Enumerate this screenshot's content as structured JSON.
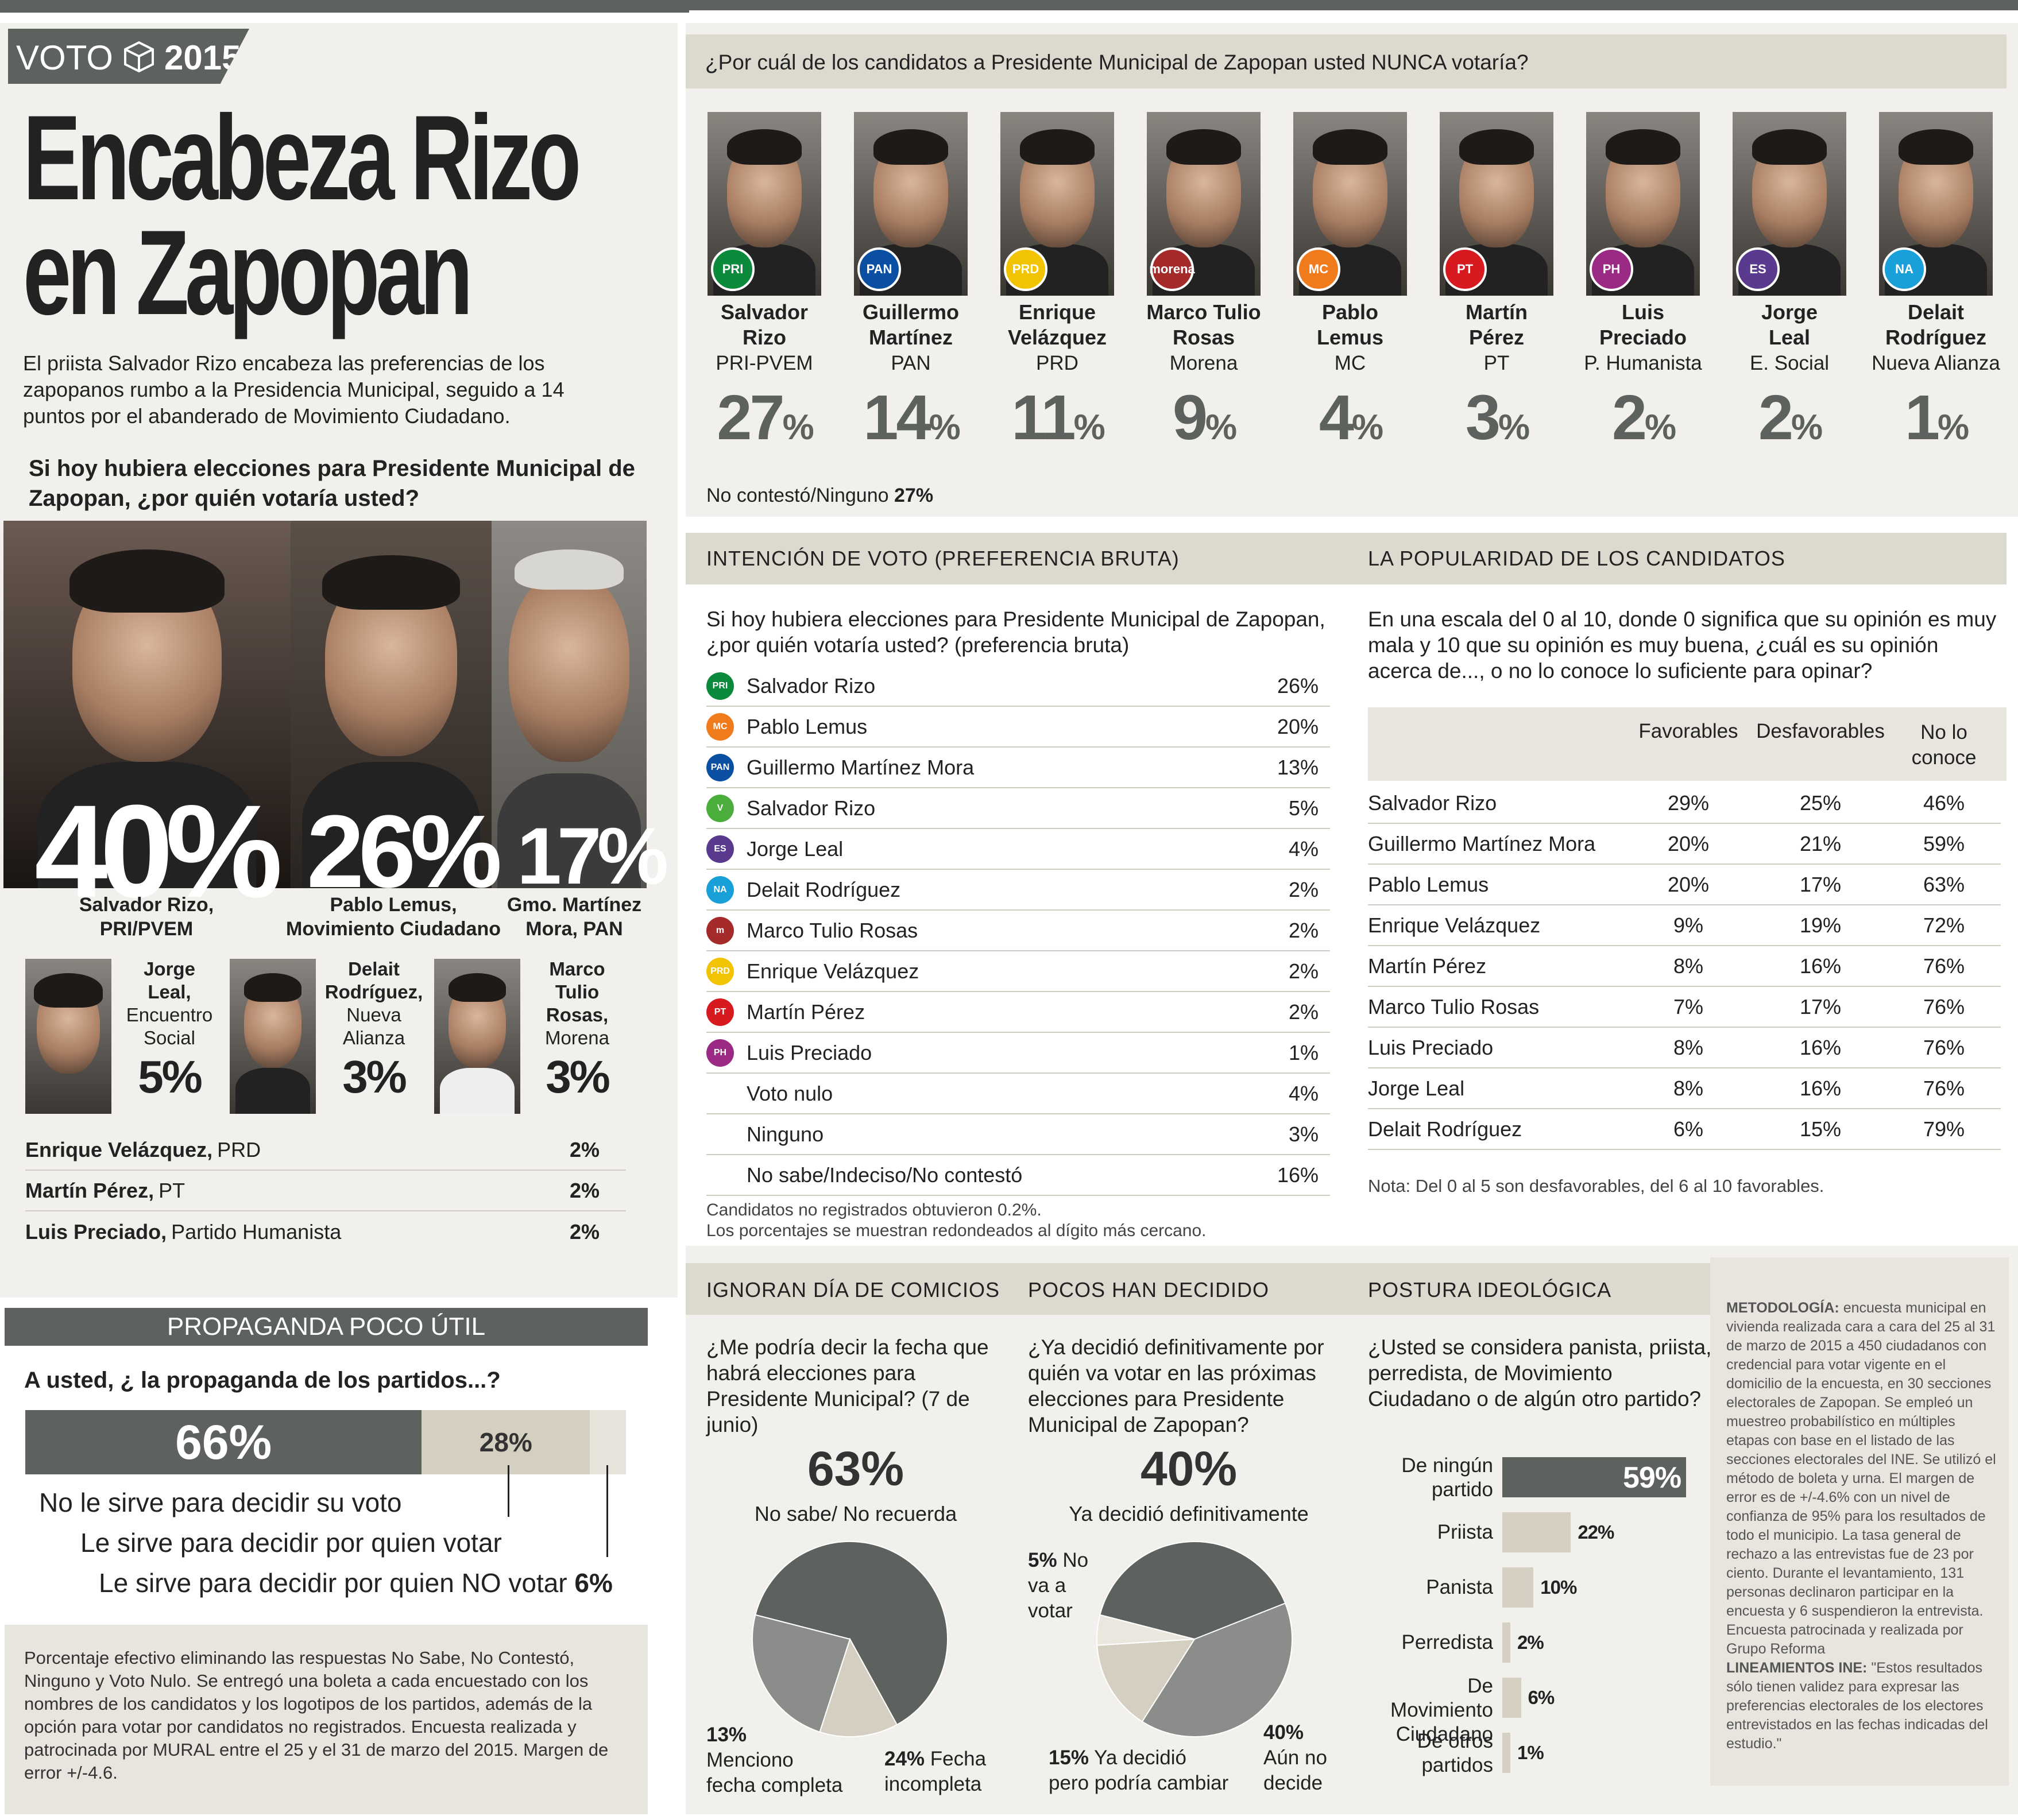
{
  "header": {
    "brand": "VOTO",
    "year": "2015",
    "title_line1": "Encabeza Rizo",
    "title_line2": "en Zapopan",
    "intro": "El priista Salvador Rizo encabeza las preferencias de los zapopanos rumbo a la Presidencia Municipal, seguido a 14 puntos por el abanderado de Movimiento Ciudadano."
  },
  "left_poll": {
    "question": "Si hoy hubiera elecciones para Presidente Municipal de Zapopan, ¿por quién votaría usted?",
    "top": [
      {
        "pct": "40%",
        "name": "Salvador Rizo,",
        "party": "PRI/PVEM"
      },
      {
        "pct": "26%",
        "name": "Pablo Lemus,",
        "party": "Movimiento Ciudadano"
      },
      {
        "pct": "17%",
        "name": "Gmo. Martínez",
        "party": "Mora, PAN"
      }
    ],
    "mid": [
      {
        "l1": "Jorge",
        "l2": "Leal,",
        "l3": "Encuentro",
        "l4": "Social",
        "pct": "5%"
      },
      {
        "l1": "Delait",
        "l2": "Rodríguez,",
        "l3": "Nueva",
        "l4": "Alianza",
        "pct": "3%"
      },
      {
        "l1": "Marco",
        "l2": "Tulio",
        "l3": "Rosas,",
        "l4": "Morena",
        "pct": "3%"
      }
    ],
    "rows": [
      {
        "name": "Enrique Velázquez,",
        "party": "PRD",
        "pct": "2%"
      },
      {
        "name": "Martín Pérez,",
        "party": "PT",
        "pct": "2%"
      },
      {
        "name": "Luis Preciado,",
        "party": "Partido Humanista",
        "pct": "2%"
      }
    ]
  },
  "propaganda": {
    "title": "PROPAGANDA POCO ÚTIL",
    "question": "A usted, ¿ la propaganda de los partidos...?",
    "bar": [
      {
        "pct": "66%",
        "value": 66,
        "color": "#5d625e"
      },
      {
        "pct": "28%",
        "value": 28,
        "color": "#d4cfc0"
      },
      {
        "pct": "",
        "value": 6,
        "color": "#e6e3da"
      }
    ],
    "l1": "No le sirve para decidir su voto",
    "l2": "Le sirve para decidir por quien votar",
    "l3": "Le sirve para decidir por quien NO votar",
    "l3pct": "6%",
    "note": "Porcentaje efectivo eliminando las respuestas No Sabe, No Contestó, Ninguno y Voto Nulo. Se entregó una boleta a cada encuestado con los nombres de los candidatos y los logotipos de los partidos, además de la opción para votar por candidatos no registrados. Encuesta realizada y patrocinada por MURAL entre el 25 y el 31 de marzo del 2015. Margen de error +/-4.6."
  },
  "nunca": {
    "question": "¿Por cuál de los candidatos a Presidente Municipal de Zapopan usted NUNCA votaría?",
    "candidates": [
      {
        "n1": "Salvador",
        "n2": "Rizo",
        "party": "PRI-PVEM",
        "pct": "27",
        "logo": "PRI",
        "color": "#0a8a3a"
      },
      {
        "n1": "Guillermo",
        "n2": "Martínez",
        "party": "PAN",
        "pct": "14",
        "logo": "PAN",
        "color": "#0b4fa3"
      },
      {
        "n1": "Enrique",
        "n2": "Velázquez",
        "party": "PRD",
        "pct": "11",
        "logo": "PRD",
        "color": "#f2c300"
      },
      {
        "n1": "Marco Tulio",
        "n2": "Rosas",
        "party": "Morena",
        "pct": "9",
        "logo": "morena",
        "color": "#a52a2a"
      },
      {
        "n1": "Pablo",
        "n2": "Lemus",
        "party": "MC",
        "pct": "4",
        "logo": "MC",
        "color": "#f07b1d"
      },
      {
        "n1": "Martín",
        "n2": "Pérez",
        "party": "PT",
        "pct": "3",
        "logo": "PT",
        "color": "#d71920"
      },
      {
        "n1": "Luis",
        "n2": "Preciado",
        "party": "P. Humanista",
        "pct": "2",
        "logo": "PH",
        "color": "#9a2a83"
      },
      {
        "n1": "Jorge",
        "n2": "Leal",
        "party": "E. Social",
        "pct": "2",
        "logo": "ES",
        "color": "#5a3a8e"
      },
      {
        "n1": "Delait",
        "n2": "Rodríguez",
        "party": "Nueva Alianza",
        "pct": "1",
        "logo": "NA",
        "color": "#1aa0d8"
      }
    ],
    "pct_sign": "%",
    "no_contesto": "No contestó/Ninguno",
    "no_contesto_pct": "27%"
  },
  "intencion": {
    "title": "INTENCIÓN DE VOTO (PREFERENCIA BRUTA)",
    "question": "Si hoy hubiera elecciones para Presidente Municipal de Zapopan, ¿por quién votaría usted? (preferencia bruta)",
    "rows": [
      {
        "name": "Salvador Rizo",
        "pct": "26%",
        "logo": "PRI",
        "color": "#0a8a3a"
      },
      {
        "name": "Pablo Lemus",
        "pct": "20%",
        "logo": "MC",
        "color": "#f07b1d"
      },
      {
        "name": "Guillermo Martínez Mora",
        "pct": "13%",
        "logo": "PAN",
        "color": "#0b4fa3"
      },
      {
        "name": "Salvador Rizo",
        "pct": "5%",
        "logo": "V",
        "color": "#4bae3c"
      },
      {
        "name": "Jorge Leal",
        "pct": "4%",
        "logo": "ES",
        "color": "#5a3a8e"
      },
      {
        "name": "Delait Rodríguez",
        "pct": "2%",
        "logo": "NA",
        "color": "#1aa0d8"
      },
      {
        "name": "Marco Tulio Rosas",
        "pct": "2%",
        "logo": "m",
        "color": "#a52a2a"
      },
      {
        "name": "Enrique Velázquez",
        "pct": "2%",
        "logo": "PRD",
        "color": "#f2c300"
      },
      {
        "name": "Martín Pérez",
        "pct": "2%",
        "logo": "PT",
        "color": "#d71920"
      },
      {
        "name": "Luis Preciado",
        "pct": "1%",
        "logo": "PH",
        "color": "#9a2a83"
      },
      {
        "name": "Voto nulo",
        "pct": "4%",
        "logo": "",
        "color": ""
      },
      {
        "name": "Ninguno",
        "pct": "3%",
        "logo": "",
        "color": ""
      },
      {
        "name": "No sabe/Indeciso/No contestó",
        "pct": "16%",
        "logo": "",
        "color": ""
      }
    ],
    "note1": "Candidatos no registrados obtuvieron 0.2%.",
    "note2": "Los porcentajes se muestran redondeados al dígito más cercano."
  },
  "popularidad": {
    "title": "LA POPULARIDAD DE LOS CANDIDATOS",
    "question": "En una escala del 0 al 10, donde 0 significa que su opinión es muy mala y 10 que su opinión es muy buena, ¿cuál es su opinión acerca de..., o no lo conoce lo suficiente para opinar?",
    "headers": [
      "Favorables",
      "Desfavorables",
      "No lo",
      "conoce"
    ],
    "rows": [
      {
        "name": "Salvador Rizo",
        "f": "29%",
        "d": "25%",
        "n": "46%"
      },
      {
        "name": "Guillermo Martínez Mora",
        "f": "20%",
        "d": "21%",
        "n": "59%"
      },
      {
        "name": "Pablo Lemus",
        "f": "20%",
        "d": "17%",
        "n": "63%"
      },
      {
        "name": "Enrique Velázquez",
        "f": "9%",
        "d": "19%",
        "n": "72%"
      },
      {
        "name": "Martín Pérez",
        "f": "8%",
        "d": "16%",
        "n": "76%"
      },
      {
        "name": "Marco Tulio Rosas",
        "f": "7%",
        "d": "17%",
        "n": "76%"
      },
      {
        "name": "Luis Preciado",
        "f": "8%",
        "d": "16%",
        "n": "76%"
      },
      {
        "name": "Jorge Leal",
        "f": "8%",
        "d": "16%",
        "n": "76%"
      },
      {
        "name": "Delait Rodríguez",
        "f": "6%",
        "d": "15%",
        "n": "79%"
      }
    ],
    "note": "Nota: Del 0 al 5 son desfavorables, del 6 al 10 favorables."
  },
  "comicios": {
    "title": "IGNORAN DÍA DE COMICIOS",
    "question": "¿Me podría decir la fecha que habrá elecciones para Presidente Municipal? (7 de junio)",
    "big": "63%",
    "big_label": "No sabe/ No recuerda",
    "slices": [
      {
        "value": 63,
        "color": "#5d625e"
      },
      {
        "value": 13,
        "color": "#d4cfc0"
      },
      {
        "value": 24,
        "color": "#8a8d89"
      }
    ],
    "l13": "13%",
    "l13a": "Menciono",
    "l13b": "fecha completa",
    "l24": "24%",
    "l24a": "Fecha",
    "l24b": "incompleta"
  },
  "decidido": {
    "title": "POCOS HAN DECIDIDO",
    "question": "¿Ya decidió definitivamente por quién va votar en las próximas elecciones para Presidente Municipal de Zapopan?",
    "big": "40%",
    "big_label": "Ya decidió definitivamente",
    "slices": [
      {
        "value": 40,
        "color": "#5d625e"
      },
      {
        "value": 40,
        "color": "#8a8d89"
      },
      {
        "value": 15,
        "color": "#d4cfc0"
      },
      {
        "value": 5,
        "color": "#eae7df"
      }
    ],
    "l5": "5%",
    "l5a": "No",
    "l5b": "va a",
    "l5c": "votar",
    "l15": "15%",
    "l15a": "Ya decidió",
    "l15b": "pero podría cambiar",
    "l40": "40%",
    "l40a": "Aún no",
    "l40b": "decide"
  },
  "ideologia": {
    "title": "POSTURA IDEOLÓGICA",
    "question": "¿Usted se considera panista, priista, perredista, de Movimiento Ciudadano o de algún otro partido?",
    "rows": [
      {
        "l1": "De ningún",
        "l2": "partido",
        "pct": "59%",
        "value": 59
      },
      {
        "l1": "Priista",
        "l2": "",
        "pct": "22%",
        "value": 22
      },
      {
        "l1": "Panista",
        "l2": "",
        "pct": "10%",
        "value": 10
      },
      {
        "l1": "Perredista",
        "l2": "",
        "pct": "2%",
        "value": 2
      },
      {
        "l1": "De Movimiento",
        "l2": "Ciudadano",
        "pct": "6%",
        "value": 6
      },
      {
        "l1": "De otros",
        "l2": "partidos",
        "pct": "1%",
        "value": 1
      }
    ]
  },
  "metodologia": {
    "label": "METODOLOGÍA:",
    "text": " encuesta municipal en vivienda realizada cara a cara del 25 al 31 de marzo de 2015 a 450 ciudadanos con credencial para votar vigente en el domicilio de la encuesta, en 30 secciones electorales de Zapopan. Se empleó un muestreo probabilístico en múltiples etapas con base en el listado de las secciones electorales del INE. Se utilizó el método de boleta y urna. El margen de error es de +/-4.6% con un nivel de confianza de 95% para los resultados de todo el municipio. La tasa general de rechazo a las entrevistas fue de 23 por ciento. Durante el levantamiento, 131 personas declinaron participar en la encuesta y 6 suspendieron la entrevista. Encuesta patrocinada y realizada por Grupo Reforma",
    "label2": "LINEAMIENTOS INE:",
    "text2": " \"Estos resultados sólo tienen validez para expresar las preferencias electorales de los electores entrevistados en las fechas indicadas del estudio.\""
  }
}
